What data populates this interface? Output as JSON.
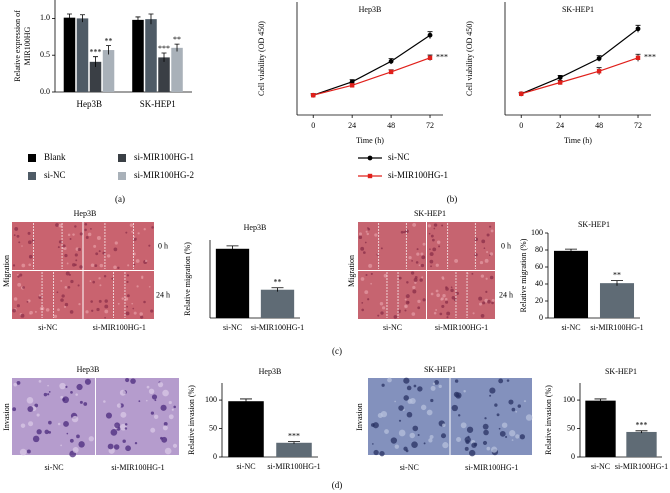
{
  "chart_data": [
    {
      "type": "grouped_bar",
      "ylabel": [
        "Relative expression of",
        "MIR100HG"
      ],
      "categories": [
        "Hep3B",
        "SK-HEP1"
      ],
      "series": [
        {
          "name": "Blank",
          "color": "#000000",
          "values": [
            1.01,
            0.98
          ],
          "errors": [
            0.05,
            0.04
          ]
        },
        {
          "name": "si-NC",
          "color": "#4f5b66",
          "values": [
            1.0,
            0.99
          ],
          "errors": [
            0.05,
            0.07
          ]
        },
        {
          "name": "si-MIR100HG-1",
          "color": "#3a3f45",
          "values": [
            0.41,
            0.47
          ],
          "errors": [
            0.07,
            0.06
          ],
          "sig": [
            "***",
            "***"
          ]
        },
        {
          "name": "si-MIR100HG-2",
          "color": "#a9b1b9",
          "values": [
            0.57,
            0.6
          ],
          "errors": [
            0.06,
            0.05
          ],
          "sig": [
            "**",
            "**"
          ]
        }
      ],
      "ylim": [
        0,
        1.25
      ],
      "yticks": [
        {
          "value": 0,
          "label": "0.0"
        },
        {
          "value": 0.5,
          "label": "0.5"
        },
        {
          "value": 1,
          "label": "1.0"
        }
      ]
    },
    {
      "type": "line",
      "title": "Hep3B",
      "xlabel": "Time (h)",
      "ylabel": "Cell viability (OD 450)",
      "x": [
        0,
        24,
        48,
        72
      ],
      "xlim": [
        -10,
        80
      ],
      "xticks": [
        0,
        24,
        48,
        72
      ],
      "ylim": [
        0,
        1.6
      ],
      "series": [
        {
          "name": "si-NC",
          "color": "#000000",
          "values": [
            0.28,
            0.47,
            0.76,
            1.13
          ],
          "errors": [
            0.02,
            0.03,
            0.04,
            0.05
          ]
        },
        {
          "name": "si-MIR100HG-1",
          "color": "#e0201b",
          "values": [
            0.28,
            0.42,
            0.61,
            0.81
          ],
          "errors": [
            0.02,
            0.02,
            0.03,
            0.04
          ],
          "sig": "***"
        }
      ]
    },
    {
      "type": "line",
      "title": "SK-HEP1",
      "xlabel": "Time (h)",
      "ylabel": "Cell viability (OD 450)",
      "x": [
        0,
        24,
        48,
        72
      ],
      "xlim": [
        -10,
        80
      ],
      "xticks": [
        0,
        24,
        48,
        72
      ],
      "ylim": [
        0,
        1.6
      ],
      "series": [
        {
          "color": "#000000",
          "values": [
            0.3,
            0.53,
            0.8,
            1.22
          ],
          "errors": [
            0.02,
            0.03,
            0.04,
            0.05
          ]
        },
        {
          "color": "#e0201b",
          "values": [
            0.3,
            0.46,
            0.62,
            0.81
          ],
          "errors": [
            0.02,
            0.03,
            0.05,
            0.05
          ],
          "sig": "***"
        }
      ]
    },
    {
      "type": "bar",
      "title": "Hep3B",
      "ylabel": "Relative migration (%)",
      "categories": [
        "si-NC",
        "si-MIR100HG-1"
      ],
      "values": [
        71,
        29
      ],
      "errors": [
        3,
        2
      ],
      "sig": [
        null,
        "**"
      ],
      "colors": [
        "#000000",
        "#5f6b75"
      ],
      "ylim": [
        0,
        80
      ]
    },
    {
      "type": "bar",
      "title": "SK-HEP1",
      "ylabel": "Relative migration (%)",
      "categories": [
        "si-NC",
        "si-MIR100HG-1"
      ],
      "values": [
        79,
        41
      ],
      "errors": [
        2,
        3
      ],
      "sig": [
        null,
        "**"
      ],
      "colors": [
        "#000000",
        "#5f6b75"
      ],
      "ylim": [
        0,
        100
      ],
      "yticks": [
        0,
        20,
        40,
        60,
        80,
        100
      ]
    },
    {
      "type": "bar",
      "title": "Hep3B",
      "ylabel": "Relative invasion (%)",
      "categories": [
        "si-NC",
        "si-MIR100HG-1"
      ],
      "values": [
        98,
        25
      ],
      "errors": [
        4,
        2
      ],
      "sig": [
        null,
        "***"
      ],
      "colors": [
        "#000000",
        "#5f6b75"
      ],
      "ylim": [
        0,
        130
      ],
      "yticks": [
        0,
        50,
        100
      ]
    },
    {
      "type": "bar",
      "title": "SK-HEP1",
      "ylabel": "Relative invasion (%)",
      "categories": [
        "si-NC",
        "si-MIR100HG-1"
      ],
      "values": [
        99,
        44
      ],
      "errors": [
        3,
        2
      ],
      "sig": [
        null,
        "***"
      ],
      "colors": [
        "#000000",
        "#5f6b75"
      ],
      "ylim": [
        0,
        130
      ],
      "yticks": [
        0,
        50,
        100
      ]
    }
  ],
  "figure": {
    "panel_labels": [
      "(a)",
      "(b)",
      "(c)",
      "(d)"
    ],
    "images": [
      {
        "title": "Hep3B",
        "y_label": "Migration",
        "row_labels": [
          "0 h",
          "24 h"
        ],
        "col_labels": [
          "si-NC",
          "si-MIR100HG-1"
        ]
      },
      {
        "title": "SK-HEP1",
        "y_label": "Migration",
        "row_labels": [
          "0 h",
          "24 h"
        ],
        "col_labels": [
          "si-NC",
          "si-MIR100HG-1"
        ]
      },
      {
        "title": "Hep3B",
        "y_label": "Invasion",
        "col_labels": [
          "si-NC",
          "si-MIR100HG-1"
        ]
      },
      {
        "title": "SK-HEP1",
        "y_label": "Invasion",
        "col_labels": [
          "si-NC",
          "si-MIR100HG-1"
        ]
      }
    ]
  }
}
